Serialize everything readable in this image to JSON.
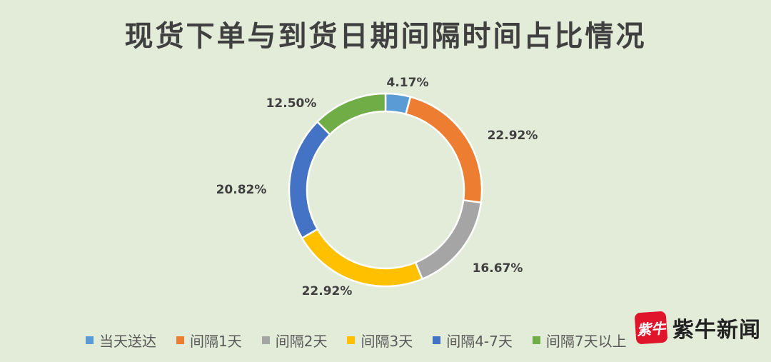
{
  "chart_data": {
    "type": "pie",
    "variant": "donut",
    "title": "现货下单与到货日期间隔时间占比情况",
    "categories": [
      "当天送达",
      "间隔1天",
      "间隔2天",
      "间隔3天",
      "间隔4-7天",
      "间隔7天以上"
    ],
    "values": [
      4.17,
      22.92,
      16.67,
      22.92,
      20.82,
      12.5
    ],
    "labels": [
      "4.17%",
      "22.92%",
      "16.67%",
      "22.92%",
      "20.82%",
      "12.50%"
    ],
    "colors": [
      "#5b9bd5",
      "#ed7d31",
      "#a5a5a5",
      "#ffc000",
      "#4472c4",
      "#70ad47"
    ],
    "legend_position": "bottom"
  },
  "watermark": {
    "badge": "紫牛",
    "text": "紫牛新闻"
  }
}
